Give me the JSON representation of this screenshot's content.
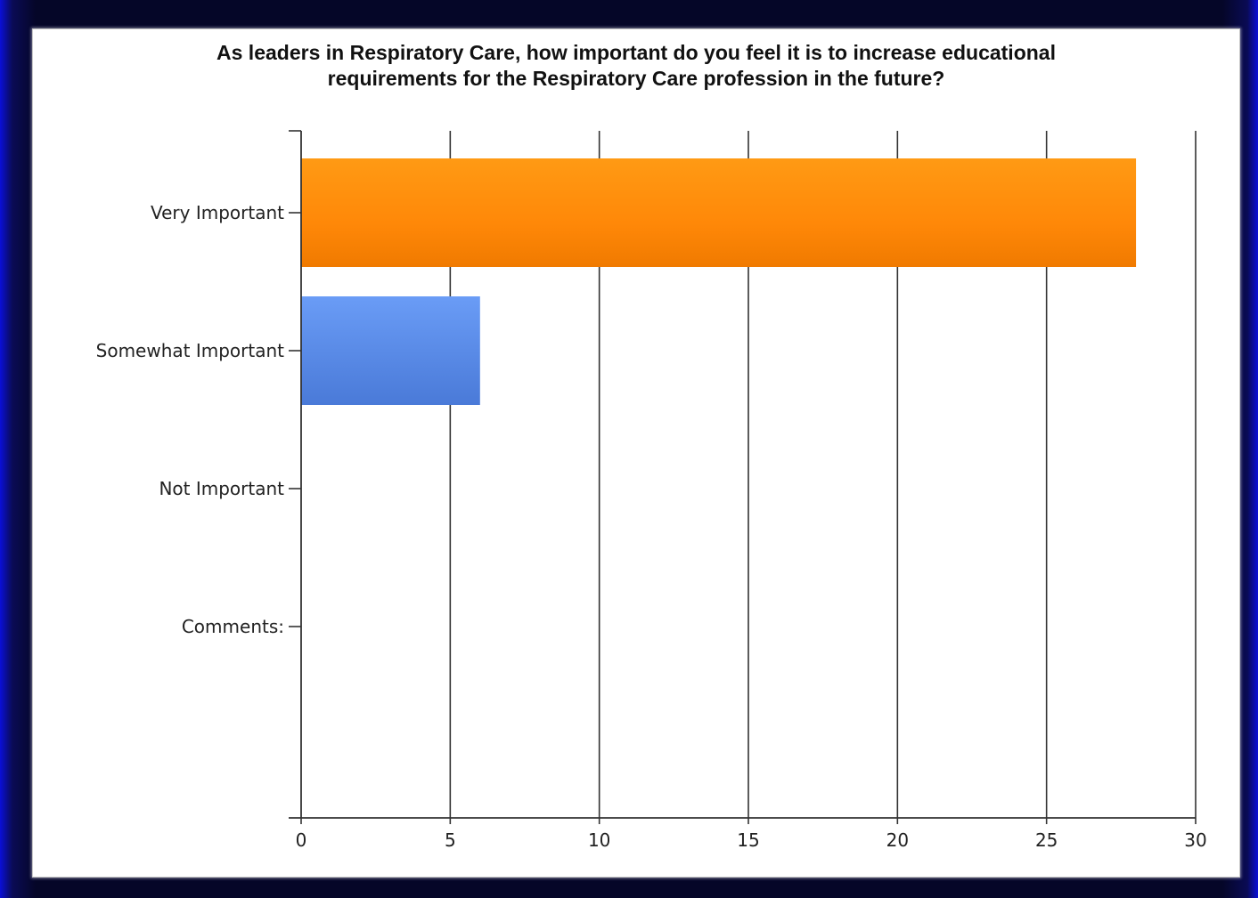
{
  "chart_data": {
    "type": "bar",
    "orientation": "horizontal",
    "title": "As leaders in Respiratory Care, how important do you feel it is to increase educational\nrequirements  for the Respiratory Care profession in the future?",
    "xlabel": "",
    "ylabel": "",
    "categories": [
      "Very Important",
      "Somewhat Important",
      "Not Important",
      "Comments:"
    ],
    "values": [
      28,
      6,
      0,
      0
    ],
    "bar_colors": [
      "#ff8c0a",
      "#5b8ee8",
      "#ff8c0a",
      "#5b8ee8"
    ],
    "xlim": [
      0,
      30
    ],
    "xticks": [
      "0",
      "5",
      "10",
      "15",
      "20",
      "25",
      "30"
    ],
    "grid": "vertical",
    "legend": "none"
  }
}
